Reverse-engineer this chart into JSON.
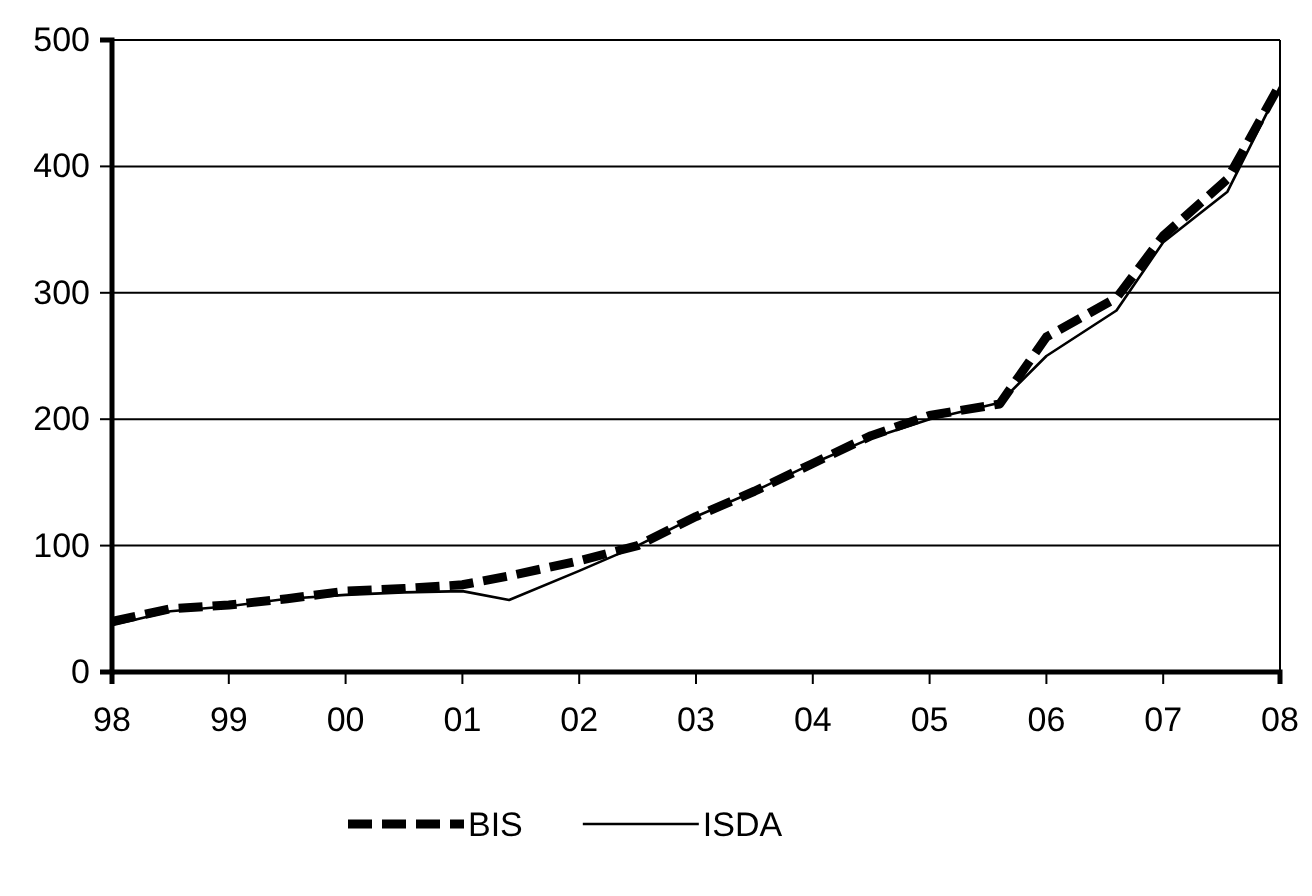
{
  "chart_data": {
    "type": "line",
    "x": [
      1998,
      1998.5,
      1999,
      1999.5,
      2000,
      2000.5,
      2001,
      2001.4,
      2002,
      2002.5,
      2003,
      2003.5,
      2004,
      2004.5,
      2005,
      2005.6,
      2006,
      2006.6,
      2007,
      2007.55,
      2008
    ],
    "series": [
      {
        "name": "BIS",
        "color": "#000000",
        "line_style": "dashed",
        "values": [
          40,
          50,
          53,
          58,
          64,
          66,
          69,
          76,
          88,
          100,
          123,
          143,
          165,
          187,
          203,
          212,
          265,
          296,
          345,
          390,
          465
        ]
      },
      {
        "name": "ISDA",
        "color": "#000000",
        "line_style": "solid",
        "values": [
          37,
          48,
          52,
          58,
          61,
          63,
          64,
          57,
          80,
          100,
          123,
          143,
          165,
          185,
          200,
          213,
          250,
          286,
          340,
          380,
          463
        ]
      }
    ],
    "xlim": [
      1998,
      2008
    ],
    "xticks": [
      {
        "value": 1998,
        "label": "98"
      },
      {
        "value": 1999,
        "label": "99"
      },
      {
        "value": 2000,
        "label": "00"
      },
      {
        "value": 2001,
        "label": "01"
      },
      {
        "value": 2002,
        "label": "02"
      },
      {
        "value": 2003,
        "label": "03"
      },
      {
        "value": 2004,
        "label": "04"
      },
      {
        "value": 2005,
        "label": "05"
      },
      {
        "value": 2006,
        "label": "06"
      },
      {
        "value": 2007,
        "label": "07"
      },
      {
        "value": 2008,
        "label": "08"
      }
    ],
    "ylim": [
      0,
      500
    ],
    "yticks": [
      0,
      100,
      200,
      300,
      400,
      500
    ],
    "grid": "y",
    "legend": "bottom",
    "marker": "none"
  }
}
